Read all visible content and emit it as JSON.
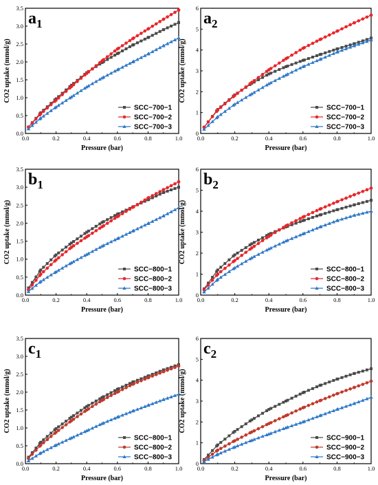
{
  "figure": {
    "panels": [
      {
        "id": "a1",
        "label": "a",
        "subscript": "1"
      },
      {
        "id": "a2",
        "label": "a",
        "subscript": "2"
      },
      {
        "id": "b1",
        "label": "b",
        "subscript": "1"
      },
      {
        "id": "b2",
        "label": "b",
        "subscript": "2"
      },
      {
        "id": "c1",
        "label": "c",
        "subscript": "1"
      },
      {
        "id": "c2",
        "label": "c",
        "subscript": "2"
      }
    ]
  },
  "chart_data": [
    {
      "panel": "a1",
      "type": "line",
      "title": "",
      "xlabel": "Pressure (bar)",
      "ylabel": "CO2 uptake (mmol/g)",
      "xlim": [
        0.0,
        1.0
      ],
      "ylim": [
        0.0,
        3.5
      ],
      "xticks": [
        "0.0",
        "0.2",
        "0.4",
        "0.6",
        "0.8",
        "1.0"
      ],
      "yticks": [
        "0.0",
        "0.5",
        "1.0",
        "1.5",
        "2.0",
        "2.5",
        "3.0",
        "3.5"
      ],
      "legend_position": "bottom-right",
      "series": [
        {
          "name": "SCC−700−1",
          "color": "#4a4a4a",
          "marker": "square",
          "x": [
            0.02,
            0.1,
            0.2,
            0.3,
            0.4,
            0.5,
            0.6,
            0.7,
            0.8,
            0.9,
            1.0
          ],
          "y": [
            0.18,
            0.58,
            0.97,
            1.35,
            1.7,
            1.98,
            2.23,
            2.47,
            2.68,
            2.9,
            3.1
          ]
        },
        {
          "name": "SCC−700−2",
          "color": "#e8262a",
          "marker": "circle",
          "x": [
            0.02,
            0.1,
            0.2,
            0.3,
            0.4,
            0.5,
            0.6,
            0.7,
            0.8,
            0.9,
            1.0
          ],
          "y": [
            0.18,
            0.55,
            0.93,
            1.31,
            1.68,
            2.03,
            2.36,
            2.65,
            2.92,
            3.19,
            3.45
          ]
        },
        {
          "name": "SCC−700−3",
          "color": "#2f78c8",
          "marker": "triangle",
          "x": [
            0.02,
            0.1,
            0.2,
            0.3,
            0.4,
            0.5,
            0.6,
            0.7,
            0.8,
            0.9,
            1.0
          ],
          "y": [
            0.13,
            0.43,
            0.74,
            1.02,
            1.3,
            1.55,
            1.78,
            2.0,
            2.22,
            2.45,
            2.67
          ]
        }
      ]
    },
    {
      "panel": "a2",
      "type": "line",
      "title": "",
      "xlabel": "Pressure (bar)",
      "ylabel": "CO2 uptake (mmol/g)",
      "xlim": [
        0.0,
        1.0
      ],
      "ylim": [
        0,
        6
      ],
      "xticks": [
        "0.0",
        "0.2",
        "0.4",
        "0.6",
        "0.8",
        "1.0"
      ],
      "yticks": [
        "0",
        "1",
        "2",
        "3",
        "4",
        "5",
        "6"
      ],
      "legend_position": "bottom-right",
      "series": [
        {
          "name": "SCC−700−1",
          "color": "#4a4a4a",
          "marker": "square",
          "x": [
            0.02,
            0.1,
            0.2,
            0.3,
            0.4,
            0.5,
            0.6,
            0.7,
            0.8,
            0.9,
            1.0
          ],
          "y": [
            0.3,
            1.15,
            1.85,
            2.4,
            2.85,
            3.2,
            3.5,
            3.78,
            4.05,
            4.3,
            4.57
          ]
        },
        {
          "name": "SCC−700−2",
          "color": "#e8262a",
          "marker": "circle",
          "x": [
            0.02,
            0.1,
            0.2,
            0.3,
            0.4,
            0.5,
            0.6,
            0.7,
            0.8,
            0.9,
            1.0
          ],
          "y": [
            0.3,
            1.12,
            1.82,
            2.45,
            3.05,
            3.58,
            4.08,
            4.5,
            4.9,
            5.3,
            5.67
          ]
        },
        {
          "name": "SCC−700−3",
          "color": "#2f78c8",
          "marker": "triangle",
          "x": [
            0.02,
            0.1,
            0.2,
            0.3,
            0.4,
            0.5,
            0.6,
            0.7,
            0.8,
            0.9,
            1.0
          ],
          "y": [
            0.2,
            0.8,
            1.4,
            1.9,
            2.38,
            2.8,
            3.2,
            3.55,
            3.9,
            4.2,
            4.48
          ]
        }
      ]
    },
    {
      "panel": "b1",
      "type": "line",
      "title": "",
      "xlabel": "Pressure (bar)",
      "ylabel": "CO2 uptake (mmol/g)",
      "xlim": [
        0.0,
        1.0
      ],
      "ylim": [
        0.0,
        3.5
      ],
      "xticks": [
        "0.0",
        "0.2",
        "0.4",
        "0.6",
        "0.8",
        "1.0"
      ],
      "yticks": [
        "0.0",
        "0.5",
        "1.0",
        "1.5",
        "2.0",
        "2.5",
        "3.0",
        "3.5"
      ],
      "legend_position": "bottom-right",
      "series": [
        {
          "name": "SCC−800−1",
          "color": "#4a4a4a",
          "marker": "square",
          "x": [
            0.02,
            0.1,
            0.2,
            0.3,
            0.4,
            0.5,
            0.6,
            0.7,
            0.8,
            0.9,
            1.0
          ],
          "y": [
            0.2,
            0.7,
            1.12,
            1.45,
            1.75,
            2.02,
            2.25,
            2.45,
            2.65,
            2.85,
            3.0
          ]
        },
        {
          "name": "SCC−800−2",
          "color": "#e8262a",
          "marker": "circle",
          "x": [
            0.02,
            0.1,
            0.2,
            0.3,
            0.4,
            0.5,
            0.6,
            0.7,
            0.8,
            0.9,
            1.0
          ],
          "y": [
            0.15,
            0.58,
            0.98,
            1.33,
            1.62,
            1.9,
            2.18,
            2.44,
            2.7,
            2.93,
            3.15
          ]
        },
        {
          "name": "SCC−800−3",
          "color": "#2f78c8",
          "marker": "triangle",
          "x": [
            0.02,
            0.1,
            0.2,
            0.3,
            0.4,
            0.5,
            0.6,
            0.7,
            0.8,
            0.9,
            1.0
          ],
          "y": [
            0.1,
            0.38,
            0.65,
            0.9,
            1.13,
            1.36,
            1.57,
            1.78,
            1.99,
            2.2,
            2.43
          ]
        }
      ]
    },
    {
      "panel": "b2",
      "type": "line",
      "title": "",
      "xlabel": "Pressure (bar)",
      "ylabel": "CO2 uptake (mmol/g)",
      "xlim": [
        0.0,
        1.0
      ],
      "ylim": [
        0,
        6
      ],
      "xticks": [
        "0.0",
        "0.2",
        "0.4",
        "0.6",
        "0.8",
        "1.0"
      ],
      "yticks": [
        "0",
        "1",
        "2",
        "3",
        "4",
        "5",
        "6"
      ],
      "legend_position": "bottom-right",
      "series": [
        {
          "name": "SCC−800−1",
          "color": "#4a4a4a",
          "marker": "square",
          "x": [
            0.02,
            0.1,
            0.2,
            0.3,
            0.4,
            0.5,
            0.6,
            0.7,
            0.8,
            0.9,
            1.0
          ],
          "y": [
            0.3,
            1.2,
            1.92,
            2.45,
            2.9,
            3.25,
            3.55,
            3.82,
            4.07,
            4.3,
            4.52
          ]
        },
        {
          "name": "SCC−800−2",
          "color": "#e8262a",
          "marker": "circle",
          "x": [
            0.02,
            0.1,
            0.2,
            0.3,
            0.4,
            0.5,
            0.6,
            0.7,
            0.8,
            0.9,
            1.0
          ],
          "y": [
            0.25,
            1.0,
            1.65,
            2.25,
            2.8,
            3.3,
            3.72,
            4.1,
            4.45,
            4.78,
            5.1
          ]
        },
        {
          "name": "SCC−800−3",
          "color": "#2f78c8",
          "marker": "triangle",
          "x": [
            0.02,
            0.1,
            0.2,
            0.3,
            0.4,
            0.5,
            0.6,
            0.7,
            0.8,
            0.9,
            1.0
          ],
          "y": [
            0.15,
            0.75,
            1.3,
            1.78,
            2.2,
            2.58,
            2.92,
            3.25,
            3.55,
            3.8,
            4.0
          ]
        }
      ]
    },
    {
      "panel": "c1",
      "type": "line",
      "title": "",
      "xlabel": "Pressure (bar)",
      "ylabel": "CO2 uptake (mmol/g)",
      "xlim": [
        0.0,
        1.0
      ],
      "ylim": [
        0.0,
        3.5
      ],
      "xticks": [
        "0.0",
        "0.2",
        "0.4",
        "0.6",
        "0.8",
        "1.0"
      ],
      "yticks": [
        "0.0",
        "0.5",
        "1.0",
        "1.5",
        "2.0",
        "2.5",
        "3.0",
        "3.5"
      ],
      "legend_position": "bottom-right",
      "series": [
        {
          "name": "SCC−800−1",
          "color": "#4a4a4a",
          "marker": "square",
          "x": [
            0.02,
            0.1,
            0.2,
            0.3,
            0.4,
            0.5,
            0.6,
            0.7,
            0.8,
            0.9,
            1.0
          ],
          "y": [
            0.18,
            0.6,
            0.98,
            1.3,
            1.6,
            1.85,
            2.08,
            2.28,
            2.45,
            2.62,
            2.77
          ]
        },
        {
          "name": "SCC−800−2",
          "color": "#c0392b",
          "marker": "circle",
          "x": [
            0.02,
            0.1,
            0.2,
            0.3,
            0.4,
            0.5,
            0.6,
            0.7,
            0.8,
            0.9,
            1.0
          ],
          "y": [
            0.15,
            0.52,
            0.88,
            1.2,
            1.5,
            1.77,
            2.0,
            2.22,
            2.4,
            2.57,
            2.73
          ]
        },
        {
          "name": "SCC−800−3",
          "color": "#2f78c8",
          "marker": "triangle",
          "x": [
            0.02,
            0.1,
            0.2,
            0.3,
            0.4,
            0.5,
            0.6,
            0.7,
            0.8,
            0.9,
            1.0
          ],
          "y": [
            0.08,
            0.3,
            0.52,
            0.72,
            0.92,
            1.12,
            1.3,
            1.47,
            1.63,
            1.79,
            1.94
          ]
        }
      ]
    },
    {
      "panel": "c2",
      "type": "line",
      "title": "",
      "xlabel": "Pressure (bar)",
      "ylabel": "CO2 uptake (mmol/g)",
      "xlim": [
        0.0,
        1.0
      ],
      "ylim": [
        0,
        6
      ],
      "xticks": [
        "0.0",
        "0.2",
        "0.4",
        "0.6",
        "0.8",
        "1.0"
      ],
      "yticks": [
        "0",
        "1",
        "2",
        "3",
        "4",
        "5",
        "6"
      ],
      "legend_position": "bottom-right",
      "series": [
        {
          "name": "SCC−900−1",
          "color": "#4a4a4a",
          "marker": "square",
          "x": [
            0.02,
            0.1,
            0.2,
            0.3,
            0.4,
            0.5,
            0.6,
            0.7,
            0.8,
            0.9,
            1.0
          ],
          "y": [
            0.2,
            0.9,
            1.55,
            2.1,
            2.6,
            3.0,
            3.4,
            3.75,
            4.05,
            4.32,
            4.55
          ]
        },
        {
          "name": "SCC−900−2",
          "color": "#c0392b",
          "marker": "circle",
          "x": [
            0.02,
            0.1,
            0.2,
            0.3,
            0.4,
            0.5,
            0.6,
            0.7,
            0.8,
            0.9,
            1.0
          ],
          "y": [
            0.15,
            0.65,
            1.1,
            1.52,
            1.92,
            2.3,
            2.68,
            3.02,
            3.35,
            3.65,
            3.95
          ]
        },
        {
          "name": "SCC−900−3",
          "color": "#2f78c8",
          "marker": "triangle",
          "x": [
            0.02,
            0.1,
            0.2,
            0.3,
            0.4,
            0.5,
            0.6,
            0.7,
            0.8,
            0.9,
            1.0
          ],
          "y": [
            0.1,
            0.45,
            0.8,
            1.12,
            1.42,
            1.72,
            2.0,
            2.3,
            2.6,
            2.88,
            3.18
          ]
        }
      ]
    }
  ]
}
